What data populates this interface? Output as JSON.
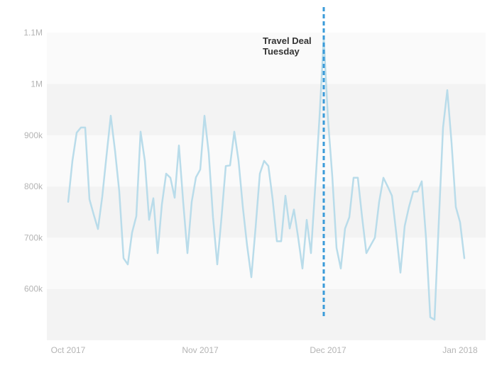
{
  "chart_data": {
    "type": "line",
    "title": "",
    "xlabel": "",
    "ylabel": "",
    "ylim": [
      500000,
      1150000
    ],
    "x_range": [
      "2017-09-26",
      "2018-01-07"
    ],
    "grid": "alternating horizontal bands",
    "y_ticks": [
      {
        "value": 600000,
        "label": "600k"
      },
      {
        "value": 700000,
        "label": "700k"
      },
      {
        "value": 800000,
        "label": "800k"
      },
      {
        "value": 900000,
        "label": "900k"
      },
      {
        "value": 1000000,
        "label": "1M"
      },
      {
        "value": 1100000,
        "label": "1.1M"
      }
    ],
    "x_ticks": [
      {
        "date": "2017-10-01",
        "label": "Oct 2017"
      },
      {
        "date": "2017-11-01",
        "label": "Nov 2017"
      },
      {
        "date": "2017-12-01",
        "label": "Dec 2017"
      },
      {
        "date": "2018-01-01",
        "label": "Jan 2018"
      }
    ],
    "series": [
      {
        "color": "#b9dcea",
        "points": [
          [
            "2017-10-01",
            770000
          ],
          [
            "2017-10-02",
            850000
          ],
          [
            "2017-10-03",
            905000
          ],
          [
            "2017-10-04",
            915000
          ],
          [
            "2017-10-05",
            915000
          ],
          [
            "2017-10-06",
            775000
          ],
          [
            "2017-10-07",
            745000
          ],
          [
            "2017-10-08",
            717000
          ],
          [
            "2017-10-09",
            780000
          ],
          [
            "2017-10-10",
            860000
          ],
          [
            "2017-10-11",
            938000
          ],
          [
            "2017-10-12",
            870000
          ],
          [
            "2017-10-13",
            790000
          ],
          [
            "2017-10-14",
            660000
          ],
          [
            "2017-10-15",
            648000
          ],
          [
            "2017-10-16",
            710000
          ],
          [
            "2017-10-17",
            742000
          ],
          [
            "2017-10-18",
            907000
          ],
          [
            "2017-10-19",
            850000
          ],
          [
            "2017-10-20",
            735000
          ],
          [
            "2017-10-21",
            777000
          ],
          [
            "2017-10-22",
            670000
          ],
          [
            "2017-10-23",
            765000
          ],
          [
            "2017-10-24",
            825000
          ],
          [
            "2017-10-25",
            817000
          ],
          [
            "2017-10-26",
            778000
          ],
          [
            "2017-10-27",
            880000
          ],
          [
            "2017-10-28",
            770000
          ],
          [
            "2017-10-29",
            670000
          ],
          [
            "2017-10-30",
            770000
          ],
          [
            "2017-10-31",
            818000
          ],
          [
            "2017-11-01",
            833000
          ],
          [
            "2017-11-02",
            938000
          ],
          [
            "2017-11-03",
            865000
          ],
          [
            "2017-11-04",
            740000
          ],
          [
            "2017-11-05",
            648000
          ],
          [
            "2017-11-06",
            740000
          ],
          [
            "2017-11-07",
            840000
          ],
          [
            "2017-11-08",
            841000
          ],
          [
            "2017-11-09",
            907000
          ],
          [
            "2017-11-10",
            850000
          ],
          [
            "2017-11-11",
            760000
          ],
          [
            "2017-11-12",
            685000
          ],
          [
            "2017-11-13",
            623000
          ],
          [
            "2017-11-14",
            720000
          ],
          [
            "2017-11-15",
            825000
          ],
          [
            "2017-11-16",
            850000
          ],
          [
            "2017-11-17",
            840000
          ],
          [
            "2017-11-18",
            775000
          ],
          [
            "2017-11-19",
            693000
          ],
          [
            "2017-11-20",
            693000
          ],
          [
            "2017-11-21",
            782000
          ],
          [
            "2017-11-22",
            718000
          ],
          [
            "2017-11-23",
            755000
          ],
          [
            "2017-11-24",
            700000
          ],
          [
            "2017-11-25",
            640000
          ],
          [
            "2017-11-26",
            735000
          ],
          [
            "2017-11-27",
            670000
          ],
          [
            "2017-11-28",
            800000
          ],
          [
            "2017-11-29",
            935000
          ],
          [
            "2017-11-30",
            1090000
          ],
          [
            "2017-12-01",
            930000
          ],
          [
            "2017-12-02",
            820000
          ],
          [
            "2017-12-03",
            680000
          ],
          [
            "2017-12-04",
            640000
          ],
          [
            "2017-12-05",
            718000
          ],
          [
            "2017-12-06",
            740000
          ],
          [
            "2017-12-07",
            817000
          ],
          [
            "2017-12-08",
            817000
          ],
          [
            "2017-12-09",
            740000
          ],
          [
            "2017-12-10",
            670000
          ],
          [
            "2017-12-11",
            685000
          ],
          [
            "2017-12-12",
            700000
          ],
          [
            "2017-12-13",
            770000
          ],
          [
            "2017-12-14",
            817000
          ],
          [
            "2017-12-15",
            800000
          ],
          [
            "2017-12-16",
            782000
          ],
          [
            "2017-12-17",
            710000
          ],
          [
            "2017-12-18",
            632000
          ],
          [
            "2017-12-19",
            723000
          ],
          [
            "2017-12-20",
            760000
          ],
          [
            "2017-12-21",
            790000
          ],
          [
            "2017-12-22",
            790000
          ],
          [
            "2017-12-23",
            810000
          ],
          [
            "2017-12-24",
            700000
          ],
          [
            "2017-12-25",
            545000
          ],
          [
            "2017-12-26",
            540000
          ],
          [
            "2017-12-27",
            730000
          ],
          [
            "2017-12-28",
            915000
          ],
          [
            "2017-12-29",
            988000
          ],
          [
            "2017-12-30",
            885000
          ],
          [
            "2017-12-31",
            760000
          ],
          [
            "2018-01-01",
            730000
          ],
          [
            "2018-01-02",
            660000
          ]
        ]
      }
    ],
    "annotations": [
      {
        "type": "vertical-dashed-line",
        "date": "2017-11-30",
        "color": "#3a9bd9",
        "label_lines": [
          "Travel Deal",
          "Tuesday"
        ]
      }
    ]
  }
}
